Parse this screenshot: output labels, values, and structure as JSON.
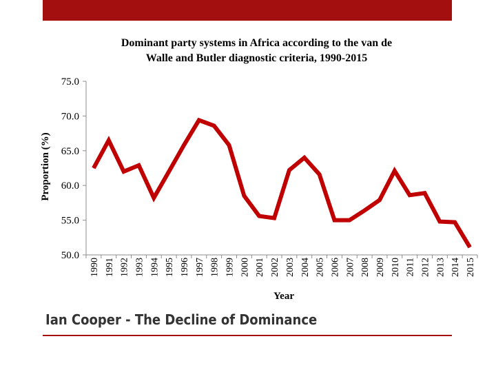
{
  "slide": {
    "footer": "Ian Cooper - The Decline of Dominance",
    "accent_color": "#a30f0f",
    "line_color": "#c00000"
  },
  "chart_data": {
    "type": "line",
    "title": "Dominant party systems in Africa according to the van de Walle and Butler diagnostic criteria, 1990-2015",
    "title_lines": [
      "Dominant party systems in Africa according to the van de",
      "Walle and Butler diagnostic criteria, 1990-2015"
    ],
    "xlabel": "Year",
    "ylabel": "Proportion (%)",
    "ylim": [
      50,
      75
    ],
    "yticks": [
      "50.0",
      "55.0",
      "60.0",
      "65.0",
      "70.0",
      "75.0"
    ],
    "grid": false,
    "legend": "none",
    "categories": [
      "1990",
      "1991",
      "1992",
      "1993",
      "1994",
      "1995",
      "1996",
      "1997",
      "1998",
      "1999",
      "2000",
      "2001",
      "2002",
      "2003",
      "2004",
      "2005",
      "2006",
      "2007",
      "2008",
      "2009",
      "2010",
      "2011",
      "2012",
      "2013",
      "2014",
      "2015"
    ],
    "series": [
      {
        "name": "Proportion (%)",
        "values": [
          62.5,
          66.5,
          62.0,
          62.9,
          58.2,
          62.0,
          65.8,
          69.4,
          68.6,
          65.8,
          58.5,
          55.6,
          55.3,
          62.2,
          64.0,
          61.6,
          55.0,
          55.0,
          56.4,
          57.9,
          62.1,
          58.6,
          58.9,
          54.8,
          54.7,
          51.1
        ]
      }
    ]
  }
}
